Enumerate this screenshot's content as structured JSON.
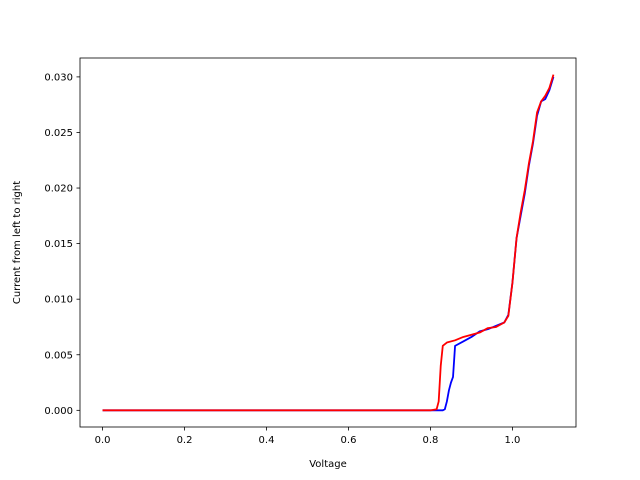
{
  "chart_data": {
    "type": "line",
    "title": "",
    "xlabel": "Voltage",
    "ylabel": "Current from left to right",
    "xlim": [
      -0.055,
      1.155
    ],
    "ylim": [
      -0.0015,
      0.0317
    ],
    "grid": false,
    "legend": "none",
    "x_ticks": [
      {
        "value": 0.0,
        "label": "0.0"
      },
      {
        "value": 0.2,
        "label": "0.2"
      },
      {
        "value": 0.4,
        "label": "0.4"
      },
      {
        "value": 0.6,
        "label": "0.6"
      },
      {
        "value": 0.8,
        "label": "0.8"
      },
      {
        "value": 1.0,
        "label": "1.0"
      }
    ],
    "y_ticks": [
      {
        "value": 0.0,
        "label": "0.000"
      },
      {
        "value": 0.005,
        "label": "0.005"
      },
      {
        "value": 0.01,
        "label": "0.010"
      },
      {
        "value": 0.015,
        "label": "0.015"
      },
      {
        "value": 0.02,
        "label": "0.020"
      },
      {
        "value": 0.025,
        "label": "0.025"
      },
      {
        "value": 0.03,
        "label": "0.030"
      }
    ],
    "series": [
      {
        "color": "#0000ff",
        "points": [
          [
            0.0,
            0.0
          ],
          [
            0.8,
            0.0
          ],
          [
            0.82,
            0.0
          ],
          [
            0.83,
            0.0
          ],
          [
            0.835,
            0.0001
          ],
          [
            0.84,
            0.0008
          ],
          [
            0.845,
            0.0018
          ],
          [
            0.85,
            0.0025
          ],
          [
            0.855,
            0.003
          ],
          [
            0.86,
            0.0058
          ],
          [
            0.88,
            0.0062
          ],
          [
            0.9,
            0.0066
          ],
          [
            0.92,
            0.0071
          ],
          [
            0.94,
            0.0073
          ],
          [
            0.96,
            0.0076
          ],
          [
            0.98,
            0.0079
          ],
          [
            0.99,
            0.0086
          ],
          [
            1.0,
            0.0115
          ],
          [
            1.01,
            0.0155
          ],
          [
            1.02,
            0.0175
          ],
          [
            1.03,
            0.0195
          ],
          [
            1.04,
            0.022
          ],
          [
            1.05,
            0.024
          ],
          [
            1.06,
            0.0265
          ],
          [
            1.07,
            0.0278
          ],
          [
            1.08,
            0.028
          ],
          [
            1.09,
            0.0288
          ],
          [
            1.1,
            0.03
          ]
        ]
      },
      {
        "color": "#ff0000",
        "points": [
          [
            0.0,
            0.0
          ],
          [
            0.8,
            0.0
          ],
          [
            0.815,
            0.0001
          ],
          [
            0.82,
            0.0008
          ],
          [
            0.825,
            0.004
          ],
          [
            0.83,
            0.0058
          ],
          [
            0.84,
            0.0061
          ],
          [
            0.86,
            0.0063
          ],
          [
            0.88,
            0.0066
          ],
          [
            0.9,
            0.0068
          ],
          [
            0.92,
            0.007
          ],
          [
            0.94,
            0.0074
          ],
          [
            0.96,
            0.0075
          ],
          [
            0.98,
            0.0079
          ],
          [
            0.99,
            0.0085
          ],
          [
            1.0,
            0.0115
          ],
          [
            1.01,
            0.0155
          ],
          [
            1.02,
            0.0178
          ],
          [
            1.03,
            0.0198
          ],
          [
            1.04,
            0.0222
          ],
          [
            1.05,
            0.0242
          ],
          [
            1.06,
            0.0268
          ],
          [
            1.07,
            0.0278
          ],
          [
            1.08,
            0.0283
          ],
          [
            1.09,
            0.029
          ],
          [
            1.1,
            0.0302
          ]
        ]
      }
    ]
  }
}
